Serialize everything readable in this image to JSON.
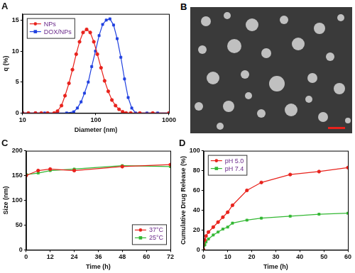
{
  "chart_data": [
    {
      "type": "line",
      "title": "A",
      "x_label": "Diameter (nm)",
      "y_label": "q (%)",
      "log": "x",
      "xlim": [
        10,
        1000
      ],
      "xticks": [
        10,
        100,
        1000
      ],
      "ylim": [
        0,
        16
      ],
      "yticks": [
        0,
        5,
        10,
        15
      ],
      "grid": false,
      "legend": "upper left",
      "series": [
        {
          "name": "NPs",
          "color": "#e8221c",
          "marker": "circle",
          "x": [
            10,
            12,
            15,
            18,
            22,
            27,
            30,
            34,
            38,
            43,
            48,
            54,
            60,
            67,
            75,
            84,
            94,
            105,
            118,
            132,
            148,
            166,
            186,
            208,
            233,
            260,
            300,
            400,
            600,
            1000
          ],
          "values": [
            0,
            0,
            0,
            0,
            0,
            0,
            0.3,
            1.2,
            2.8,
            4.8,
            7,
            9.5,
            11.5,
            13,
            13.5,
            13,
            11.5,
            9.5,
            7.3,
            5.2,
            3.5,
            2.1,
            1.2,
            0.6,
            0.2,
            0,
            0,
            0,
            0,
            0
          ]
        },
        {
          "name": "DOX/NPs",
          "color": "#2040e0",
          "marker": "square",
          "x": [
            10,
            15,
            20,
            30,
            40,
            50,
            56,
            63,
            70,
            79,
            88,
            99,
            111,
            124,
            139,
            156,
            175,
            196,
            220,
            247,
            277,
            310,
            350,
            500,
            700,
            1000
          ],
          "values": [
            0,
            0,
            0,
            0,
            0,
            0.2,
            0.8,
            1.8,
            3.2,
            5,
            7.5,
            10,
            12.5,
            14.3,
            15,
            15.2,
            14.2,
            12,
            9,
            5.5,
            2.5,
            0.8,
            0,
            0,
            0,
            0
          ]
        }
      ]
    },
    {
      "type": "line",
      "title": "C",
      "x_label": "Time (h)",
      "y_label": "Size (nm)",
      "xlim": [
        0,
        72
      ],
      "xticks": [
        0,
        12,
        24,
        36,
        48,
        60,
        72
      ],
      "ylim": [
        0,
        200
      ],
      "yticks": [
        0,
        50,
        100,
        150,
        200
      ],
      "grid": false,
      "legend": "lower right",
      "x": [
        0,
        6,
        12,
        24,
        48,
        72
      ],
      "series": [
        {
          "name": "37°C",
          "color": "#e8221c",
          "marker": "circle",
          "values": [
            150,
            160,
            163,
            160,
            168,
            172
          ]
        },
        {
          "name": "25°C",
          "color": "#33b833",
          "marker": "square",
          "values": [
            152,
            155,
            160,
            163,
            170,
            168
          ]
        }
      ]
    },
    {
      "type": "line",
      "title": "D",
      "x_label": "Time (h)",
      "y_label": "Cumulative Drug Release (%)",
      "xlim": [
        0,
        60
      ],
      "xticks": [
        0,
        10,
        20,
        30,
        40,
        50,
        60
      ],
      "ylim": [
        0,
        100
      ],
      "yticks": [
        0,
        20,
        40,
        60,
        80,
        100
      ],
      "grid": false,
      "legend": "upper left",
      "x": [
        0,
        0.5,
        1,
        2,
        4,
        6,
        8,
        10,
        12,
        18,
        24,
        36,
        48,
        60
      ],
      "series": [
        {
          "name": "pH 5.0",
          "color": "#e8221c",
          "marker": "circle",
          "values": [
            0,
            10,
            14,
            18,
            23,
            28,
            33,
            38,
            45,
            60,
            68,
            76,
            79,
            83
          ]
        },
        {
          "name": "pH 7.4",
          "color": "#33b833",
          "marker": "square",
          "values": [
            0,
            5,
            8,
            11,
            15,
            18,
            21,
            23,
            27,
            30,
            32,
            34,
            36,
            37
          ]
        }
      ]
    }
  ],
  "image_panel": {
    "title": "B"
  }
}
